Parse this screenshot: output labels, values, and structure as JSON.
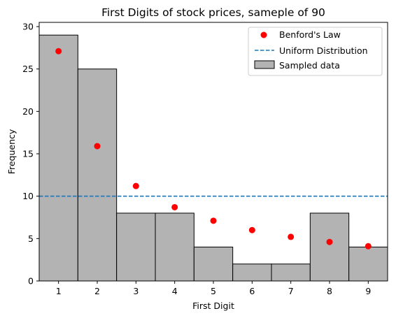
{
  "chart_data": {
    "type": "bar",
    "title": "First Digits of stock prices, sameple of 90",
    "xlabel": "First Digit",
    "ylabel": "Frequency",
    "categories": [
      "1",
      "2",
      "3",
      "4",
      "5",
      "6",
      "7",
      "8",
      "9"
    ],
    "x_ticks": [
      1,
      2,
      3,
      4,
      5,
      6,
      7,
      8,
      9
    ],
    "y_ticks": [
      0,
      5,
      10,
      15,
      20,
      25,
      30
    ],
    "xlim": [
      0.5,
      9.5
    ],
    "ylim": [
      0,
      30.5
    ],
    "grid": false,
    "legend_position": "top-right",
    "series": [
      {
        "name": "Sampled data",
        "type": "bar",
        "values": [
          29,
          25,
          8,
          8,
          4,
          2,
          2,
          8,
          4
        ],
        "color": "#b3b3b3",
        "edge_color": "#000000"
      },
      {
        "name": "Benford's Law",
        "type": "scatter",
        "x": [
          1,
          2,
          3,
          4,
          5,
          6,
          7,
          8,
          9
        ],
        "values": [
          27.1,
          15.9,
          11.2,
          8.7,
          7.1,
          6.0,
          5.2,
          4.6,
          4.1
        ],
        "color": "#ff0000"
      },
      {
        "name": "Uniform Distribution",
        "type": "hline",
        "value": 10,
        "color": "#1f77b4",
        "line_style": "dashed"
      }
    ]
  }
}
